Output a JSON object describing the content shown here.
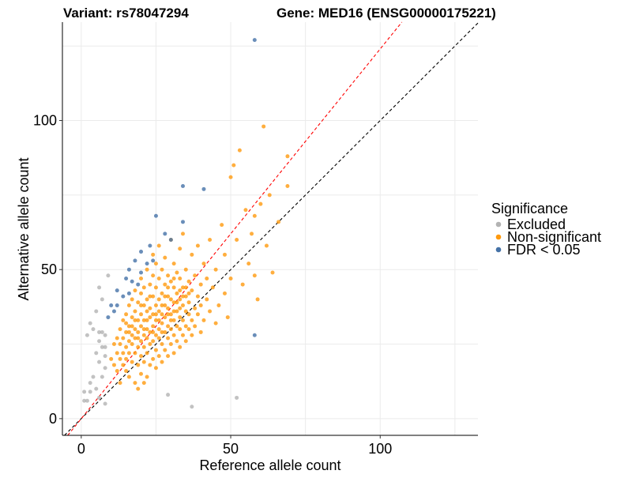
{
  "chart_data": {
    "type": "scatter",
    "title_left": "Variant: rs78047294",
    "title_right": "Gene: MED16 (ENSG00000175221)",
    "xlabel": "Reference allele count",
    "ylabel": "Alternative allele count",
    "xlim": [
      -6.3,
      132.7
    ],
    "ylim": [
      -5.6,
      133
    ],
    "xticks": [
      {
        "v": 0,
        "label": "0"
      },
      {
        "v": 50,
        "label": "50"
      },
      {
        "v": 100,
        "label": "100"
      }
    ],
    "yticks": [
      {
        "v": 0,
        "label": "0"
      },
      {
        "v": 50,
        "label": "50"
      },
      {
        "v": 100,
        "label": "100"
      }
    ],
    "minor_grid": [
      25,
      75,
      125
    ],
    "grid": true,
    "reference_lines": [
      {
        "name": "equal-ratio",
        "slope": 1.0,
        "intercept": 0,
        "color": "#000000"
      },
      {
        "name": "fitted-ratio",
        "slope": 1.24,
        "intercept": 0,
        "color": "#ff0000"
      }
    ],
    "legend": {
      "title": "Significance",
      "position": "right",
      "entries": [
        {
          "label": "Excluded",
          "color": "#b3b3b3"
        },
        {
          "label": "Non-significant",
          "color": "#ff9a0e"
        },
        {
          "label": "FDR < 0.05",
          "color": "#4572a7"
        }
      ]
    },
    "series": [
      {
        "name": "Excluded",
        "color": "#b3b3b3",
        "points": [
          [
            9,
            48
          ],
          [
            6,
            44
          ],
          [
            7,
            40
          ],
          [
            5,
            36
          ],
          [
            3,
            32
          ],
          [
            2,
            28
          ],
          [
            4,
            30
          ],
          [
            6,
            26
          ],
          [
            8,
            28
          ],
          [
            7,
            24
          ],
          [
            5,
            22
          ],
          [
            6,
            19
          ],
          [
            8,
            17
          ],
          [
            4,
            14
          ],
          [
            3,
            12
          ],
          [
            1,
            9
          ],
          [
            2,
            6
          ],
          [
            3,
            9
          ],
          [
            5,
            10
          ],
          [
            6,
            7
          ],
          [
            8,
            5
          ],
          [
            29,
            8
          ],
          [
            37,
            4
          ],
          [
            52,
            7
          ],
          [
            7,
            29
          ],
          [
            8,
            24
          ],
          [
            1,
            6
          ],
          [
            6,
            29
          ],
          [
            8,
            21
          ],
          [
            7,
            14
          ]
        ]
      },
      {
        "name": "Non-significant",
        "color": "#ff9a0e",
        "points": [
          [
            12,
            16
          ],
          [
            12,
            22
          ],
          [
            13,
            25
          ],
          [
            13,
            30
          ],
          [
            14,
            18
          ],
          [
            14,
            27
          ],
          [
            14,
            33
          ],
          [
            15,
            20
          ],
          [
            15,
            24
          ],
          [
            15,
            29
          ],
          [
            15,
            35
          ],
          [
            16,
            14
          ],
          [
            16,
            22
          ],
          [
            16,
            26
          ],
          [
            16,
            31
          ],
          [
            16,
            38
          ],
          [
            17,
            19
          ],
          [
            17,
            25
          ],
          [
            17,
            28
          ],
          [
            17,
            34
          ],
          [
            17,
            40
          ],
          [
            18,
            12
          ],
          [
            18,
            22
          ],
          [
            18,
            27
          ],
          [
            18,
            30
          ],
          [
            18,
            36
          ],
          [
            18,
            43
          ],
          [
            19,
            18
          ],
          [
            19,
            24
          ],
          [
            19,
            29
          ],
          [
            19,
            33
          ],
          [
            19,
            39
          ],
          [
            20,
            15
          ],
          [
            20,
            21
          ],
          [
            20,
            26
          ],
          [
            20,
            31
          ],
          [
            20,
            35
          ],
          [
            20,
            42
          ],
          [
            20,
            47
          ],
          [
            21,
            19
          ],
          [
            21,
            24
          ],
          [
            21,
            28
          ],
          [
            21,
            33
          ],
          [
            21,
            38
          ],
          [
            21,
            44
          ],
          [
            22,
            14
          ],
          [
            22,
            22
          ],
          [
            22,
            27
          ],
          [
            22,
            30
          ],
          [
            22,
            36
          ],
          [
            22,
            40
          ],
          [
            22,
            50
          ],
          [
            23,
            18
          ],
          [
            23,
            25
          ],
          [
            23,
            29
          ],
          [
            23,
            34
          ],
          [
            23,
            37
          ],
          [
            23,
            45
          ],
          [
            24,
            20
          ],
          [
            24,
            26
          ],
          [
            24,
            31
          ],
          [
            24,
            35
          ],
          [
            24,
            41
          ],
          [
            24,
            48
          ],
          [
            24,
            55
          ],
          [
            25,
            17
          ],
          [
            25,
            23
          ],
          [
            25,
            28
          ],
          [
            25,
            33
          ],
          [
            25,
            38
          ],
          [
            25,
            44
          ],
          [
            25,
            52
          ],
          [
            26,
            21
          ],
          [
            26,
            27
          ],
          [
            26,
            30
          ],
          [
            26,
            36
          ],
          [
            26,
            40
          ],
          [
            26,
            47
          ],
          [
            26,
            58
          ],
          [
            27,
            19
          ],
          [
            27,
            25
          ],
          [
            27,
            32
          ],
          [
            27,
            35
          ],
          [
            27,
            42
          ],
          [
            27,
            50
          ],
          [
            28,
            23
          ],
          [
            28,
            29
          ],
          [
            28,
            34
          ],
          [
            28,
            38
          ],
          [
            28,
            45
          ],
          [
            28,
            54
          ],
          [
            29,
            21
          ],
          [
            29,
            27
          ],
          [
            29,
            31
          ],
          [
            29,
            37
          ],
          [
            29,
            41
          ],
          [
            29,
            48
          ],
          [
            30,
            25
          ],
          [
            30,
            30
          ],
          [
            30,
            35
          ],
          [
            30,
            40
          ],
          [
            30,
            46
          ],
          [
            30,
            60
          ],
          [
            31,
            22
          ],
          [
            31,
            28
          ],
          [
            31,
            33
          ],
          [
            31,
            39
          ],
          [
            31,
            44
          ],
          [
            31,
            52
          ],
          [
            32,
            26
          ],
          [
            32,
            31
          ],
          [
            32,
            36
          ],
          [
            32,
            42
          ],
          [
            32,
            49
          ],
          [
            33,
            24
          ],
          [
            33,
            30
          ],
          [
            33,
            34
          ],
          [
            33,
            40
          ],
          [
            33,
            47
          ],
          [
            33,
            57
          ],
          [
            34,
            28
          ],
          [
            34,
            33
          ],
          [
            34,
            38
          ],
          [
            34,
            44
          ],
          [
            34,
            62
          ],
          [
            35,
            26
          ],
          [
            35,
            31
          ],
          [
            35,
            36
          ],
          [
            35,
            41
          ],
          [
            35,
            50
          ],
          [
            36,
            30
          ],
          [
            36,
            35
          ],
          [
            36,
            39
          ],
          [
            36,
            46
          ],
          [
            37,
            28
          ],
          [
            37,
            33
          ],
          [
            37,
            43
          ],
          [
            37,
            55
          ],
          [
            38,
            31
          ],
          [
            38,
            37
          ],
          [
            38,
            48
          ],
          [
            39,
            35
          ],
          [
            39,
            41
          ],
          [
            39,
            58
          ],
          [
            40,
            29
          ],
          [
            40,
            38
          ],
          [
            40,
            45
          ],
          [
            41,
            33
          ],
          [
            41,
            52
          ],
          [
            42,
            40
          ],
          [
            42,
            47
          ],
          [
            43,
            36
          ],
          [
            43,
            60
          ],
          [
            44,
            44
          ],
          [
            45,
            32
          ],
          [
            45,
            50
          ],
          [
            46,
            38
          ],
          [
            47,
            65
          ],
          [
            48,
            42
          ],
          [
            48,
            55
          ],
          [
            49,
            34
          ],
          [
            50,
            47
          ],
          [
            50,
            81
          ],
          [
            51,
            85
          ],
          [
            52,
            60
          ],
          [
            53,
            90
          ],
          [
            54,
            45
          ],
          [
            55,
            70
          ],
          [
            56,
            52
          ],
          [
            57,
            62
          ],
          [
            58,
            68
          ],
          [
            58,
            48
          ],
          [
            59,
            40
          ],
          [
            60,
            72
          ],
          [
            61,
            98
          ],
          [
            62,
            58
          ],
          [
            63,
            75
          ],
          [
            64,
            49
          ],
          [
            66,
            66
          ],
          [
            69,
            78
          ],
          [
            69,
            88
          ],
          [
            10,
            20
          ],
          [
            11,
            25
          ],
          [
            11,
            18
          ],
          [
            13,
            12
          ],
          [
            19,
            10
          ],
          [
            21,
            12
          ],
          [
            15,
            16
          ],
          [
            14,
            22
          ],
          [
            16,
            29
          ],
          [
            18,
            33
          ],
          [
            19,
            27
          ],
          [
            20,
            38
          ],
          [
            22,
            33
          ],
          [
            23,
            41
          ],
          [
            24,
            29
          ],
          [
            26,
            33
          ],
          [
            27,
            38
          ],
          [
            28,
            41
          ],
          [
            29,
            35
          ],
          [
            30,
            33
          ],
          [
            31,
            36
          ],
          [
            32,
            39
          ],
          [
            33,
            37
          ],
          [
            34,
            41
          ],
          [
            35,
            44
          ],
          [
            36,
            42
          ],
          [
            12,
            27
          ],
          [
            13,
            20
          ],
          [
            15,
            32
          ],
          [
            17,
            31
          ],
          [
            21,
            30
          ],
          [
            25,
            35
          ],
          [
            27,
            29
          ],
          [
            29,
            44
          ],
          [
            31,
            47
          ],
          [
            33,
            43
          ]
        ]
      },
      {
        "name": "FDR < 0.05",
        "color": "#4572a7",
        "points": [
          [
            58,
            127
          ],
          [
            34,
            78
          ],
          [
            41,
            77
          ],
          [
            25,
            68
          ],
          [
            34,
            66
          ],
          [
            28,
            62
          ],
          [
            30,
            60
          ],
          [
            23,
            58
          ],
          [
            20,
            56
          ],
          [
            18,
            53
          ],
          [
            24,
            53
          ],
          [
            22,
            52
          ],
          [
            16,
            50
          ],
          [
            20,
            49
          ],
          [
            15,
            47
          ],
          [
            17,
            46
          ],
          [
            12,
            43
          ],
          [
            19,
            45
          ],
          [
            14,
            41
          ],
          [
            16,
            42
          ],
          [
            10,
            38
          ],
          [
            12,
            38
          ],
          [
            11,
            36
          ],
          [
            9,
            34
          ],
          [
            58,
            28
          ]
        ]
      }
    ]
  }
}
